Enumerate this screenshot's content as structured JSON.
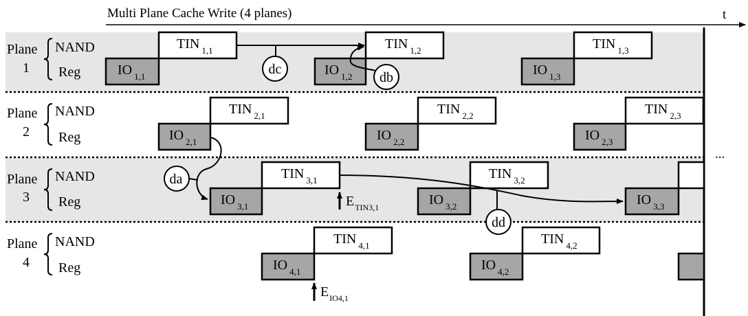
{
  "title": "Multi Plane Cache Write (4 planes)",
  "time_label": "t",
  "ellipsis": "...",
  "colors": {
    "band": "#e6e6e6",
    "io_fill": "#a6a6a6",
    "tin_fill": "#ffffff",
    "line": "#000000"
  },
  "row_labels": {
    "nand": "NAND",
    "reg": "Reg"
  },
  "planes": [
    {
      "label": "Plane",
      "number": "1",
      "tins": [
        {
          "base": "TIN",
          "sub": "1,1"
        },
        {
          "base": "TIN",
          "sub": "1,2"
        },
        {
          "base": "TIN",
          "sub": "1,3"
        }
      ],
      "ios": [
        {
          "base": "IO",
          "sub": "1,1"
        },
        {
          "base": "IO",
          "sub": "1,2"
        },
        {
          "base": "IO",
          "sub": "1,3"
        }
      ]
    },
    {
      "label": "Plane",
      "number": "2",
      "tins": [
        {
          "base": "TIN",
          "sub": "2,1"
        },
        {
          "base": "TIN",
          "sub": "2,2"
        },
        {
          "base": "TIN",
          "sub": "2,3"
        }
      ],
      "ios": [
        {
          "base": "IO",
          "sub": "2,1"
        },
        {
          "base": "IO",
          "sub": "2,2"
        },
        {
          "base": "IO",
          "sub": "2,3"
        }
      ]
    },
    {
      "label": "Plane",
      "number": "3",
      "tins": [
        {
          "base": "TIN",
          "sub": "3,1"
        },
        {
          "base": "TIN",
          "sub": "3,2"
        },
        {
          "base": "",
          "sub": ""
        }
      ],
      "ios": [
        {
          "base": "IO",
          "sub": "3,1"
        },
        {
          "base": "IO",
          "sub": "3,2"
        },
        {
          "base": "IO",
          "sub": "3,3"
        }
      ]
    },
    {
      "label": "Plane",
      "number": "4",
      "tins": [
        {
          "base": "TIN",
          "sub": "4,1"
        },
        {
          "base": "TIN",
          "sub": "4,2"
        }
      ],
      "ios": [
        {
          "base": "IO",
          "sub": "4,1"
        },
        {
          "base": "IO",
          "sub": "4,2"
        },
        {
          "base": "",
          "sub": ""
        }
      ]
    }
  ],
  "dependencies": [
    {
      "label": "dc"
    },
    {
      "label": "db"
    },
    {
      "label": "da"
    },
    {
      "label": "dd"
    }
  ],
  "events": [
    {
      "base": "E",
      "sub": "TIN3,1"
    },
    {
      "base": "E",
      "sub": "IO4,1"
    }
  ]
}
